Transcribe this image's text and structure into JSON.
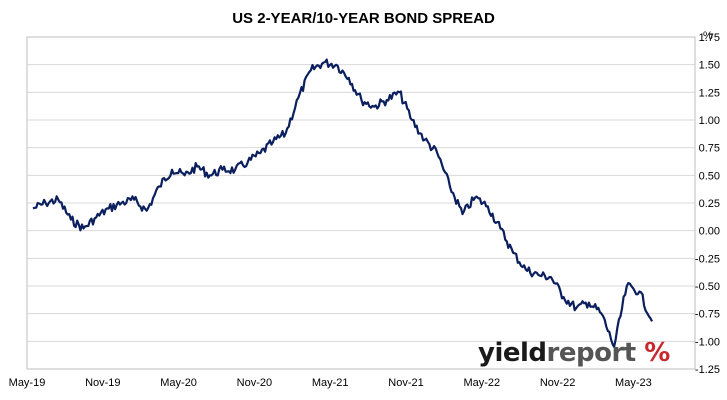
{
  "chart_data": {
    "type": "line",
    "title": "US 2-YEAR/10-YEAR BOND SPREAD",
    "ylabel": "%",
    "xlabel": "",
    "x_ticks": [
      "May-19",
      "Nov-19",
      "May-20",
      "Nov-20",
      "May-21",
      "Nov-21",
      "May-22",
      "Nov-22",
      "May-23"
    ],
    "ylim": [
      -1.25,
      1.75
    ],
    "y_ticks": [
      "1.75",
      "1.50",
      "1.25",
      "1.00",
      "0.75",
      "0.50",
      "0.25",
      "0.00",
      "-0.25",
      "-0.50",
      "-0.75",
      "-1.00",
      "-1.25"
    ],
    "grid": true,
    "y_axis_side": "right",
    "series": [
      {
        "color": "#0b1f5e",
        "x": [
          "2019-05",
          "2019-06",
          "2019-07",
          "2019-08",
          "2019-09",
          "2019-10",
          "2019-11",
          "2019-12",
          "2020-01",
          "2020-02",
          "2020-03",
          "2020-04",
          "2020-05",
          "2020-06",
          "2020-07",
          "2020-08",
          "2020-09",
          "2020-10",
          "2020-11",
          "2020-12",
          "2021-01",
          "2021-02",
          "2021-03",
          "2021-04",
          "2021-05",
          "2021-06",
          "2021-07",
          "2021-08",
          "2021-09",
          "2021-10",
          "2021-11",
          "2021-12",
          "2022-01",
          "2022-02",
          "2022-03",
          "2022-04",
          "2022-05",
          "2022-06",
          "2022-07",
          "2022-08",
          "2022-09",
          "2022-10",
          "2022-11",
          "2022-12",
          "2023-01",
          "2023-02",
          "2023-03",
          "2023-04",
          "2023-05",
          "2023-06"
        ],
        "values": [
          0.2,
          0.25,
          0.28,
          0.1,
          0.02,
          0.12,
          0.2,
          0.25,
          0.28,
          0.18,
          0.4,
          0.55,
          0.5,
          0.58,
          0.5,
          0.55,
          0.55,
          0.62,
          0.7,
          0.8,
          0.88,
          1.2,
          1.45,
          1.52,
          1.5,
          1.38,
          1.18,
          1.12,
          1.18,
          1.25,
          1.0,
          0.82,
          0.7,
          0.4,
          0.15,
          0.3,
          0.22,
          0.02,
          -0.2,
          -0.35,
          -0.4,
          -0.42,
          -0.6,
          -0.7,
          -0.65,
          -0.75,
          -1.05,
          -0.5,
          -0.55,
          -0.82
        ]
      }
    ]
  },
  "brand": {
    "part1": "yield",
    "part2": "report",
    "part3": "%",
    "colors": {
      "yield": "#1a1a1a",
      "report": "#555555",
      "percent": "#c7282e"
    }
  }
}
